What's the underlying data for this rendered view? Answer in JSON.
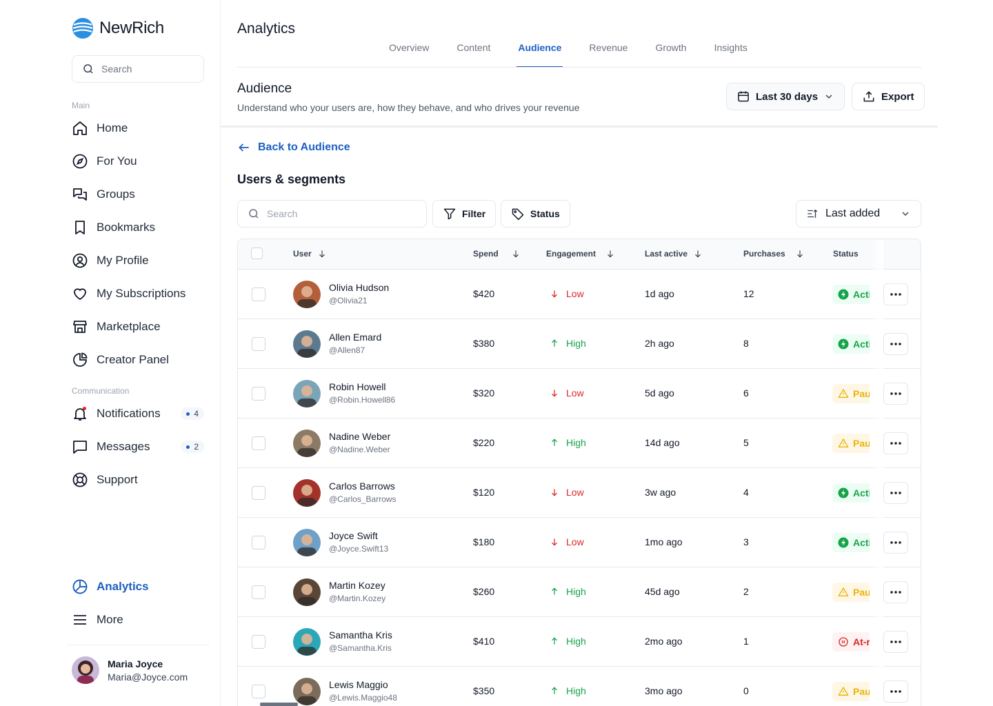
{
  "brand": {
    "name": "NewRich"
  },
  "sidebar": {
    "search_placeholder": "Search",
    "section_main": "Main",
    "main_items": [
      {
        "label": "Home",
        "icon": "home-icon"
      },
      {
        "label": "For You",
        "icon": "compass-icon"
      },
      {
        "label": "Groups",
        "icon": "chat-bubbles-icon"
      },
      {
        "label": "Bookmarks",
        "icon": "bookmark-icon"
      },
      {
        "label": "My Profile",
        "icon": "user-circle-icon"
      },
      {
        "label": "My Subscriptions",
        "icon": "heart-icon"
      },
      {
        "label": "Marketplace",
        "icon": "store-icon"
      },
      {
        "label": "Creator Panel",
        "icon": "pie-chart-icon"
      }
    ],
    "section_comm": "Communication",
    "comm_items": [
      {
        "label": "Notifications",
        "icon": "bell-icon",
        "badge": "4"
      },
      {
        "label": "Messages",
        "icon": "message-icon",
        "badge": "2"
      },
      {
        "label": "Support",
        "icon": "lifebuoy-icon"
      }
    ],
    "bottom_items": [
      {
        "label": "Analytics",
        "icon": "analytics-icon",
        "active": true
      },
      {
        "label": "More",
        "icon": "menu-icon"
      }
    ],
    "user": {
      "name": "Maria Joyce",
      "email": "Maria@Joyce.com"
    }
  },
  "header": {
    "title": "Analytics",
    "tabs": [
      {
        "label": "Overview"
      },
      {
        "label": "Content"
      },
      {
        "label": "Audience",
        "active": true
      },
      {
        "label": "Revenue"
      },
      {
        "label": "Growth"
      },
      {
        "label": "Insights"
      }
    ]
  },
  "section": {
    "title": "Audience",
    "subtitle": "Understand who your users are, how they behave, and who drives your revenue",
    "date_range_label": "Last 30 days",
    "export_label": "Export"
  },
  "back_link": "Back to Audience",
  "list": {
    "title": "Users & segments",
    "search_placeholder": "Search",
    "filter_label": "Filter",
    "status_label": "Status",
    "sort_label": "Last added"
  },
  "table": {
    "columns": {
      "user": "User",
      "spend": "Spend",
      "engagement": "Engagement",
      "last_active": "Last active",
      "purchases": "Purchases",
      "status": "Status"
    },
    "rows": [
      {
        "name": "Olivia Hudson",
        "handle": "@Olivia21",
        "spend": "$420",
        "engagement": "Low",
        "last_active": "1d ago",
        "purchases": "12",
        "status": "Active",
        "status_type": "active",
        "avatar_color": "#b45f3b"
      },
      {
        "name": "Allen Emard",
        "handle": "@Allen87",
        "spend": "$380",
        "engagement": "High",
        "last_active": "2h ago",
        "purchases": "8",
        "status": "Active",
        "status_type": "active",
        "avatar_color": "#5b7a8f"
      },
      {
        "name": "Robin Howell",
        "handle": "@Robin.Howell86",
        "spend": "$320",
        "engagement": "Low",
        "last_active": "5d ago",
        "purchases": "6",
        "status": "Paused",
        "status_type": "pause",
        "avatar_color": "#7aa5b8"
      },
      {
        "name": "Nadine Weber",
        "handle": "@Nadine.Weber",
        "spend": "$220",
        "engagement": "High",
        "last_active": "14d ago",
        "purchases": "5",
        "status": "Paused",
        "status_type": "pause",
        "avatar_color": "#8a7a66"
      },
      {
        "name": "Carlos Barrows",
        "handle": "@Carlos_Barrows",
        "spend": "$120",
        "engagement": "Low",
        "last_active": "3w ago",
        "purchases": "4",
        "status": "Active",
        "status_type": "active",
        "avatar_color": "#a3322b"
      },
      {
        "name": "Joyce Swift",
        "handle": "@Joyce.Swift13",
        "spend": "$180",
        "engagement": "Low",
        "last_active": "1mo ago",
        "purchases": "3",
        "status": "Active",
        "status_type": "active",
        "avatar_color": "#6fa0c7"
      },
      {
        "name": "Martin Kozey",
        "handle": "@Martin.Kozey",
        "spend": "$260",
        "engagement": "High",
        "last_active": "45d ago",
        "purchases": "2",
        "status": "Paused",
        "status_type": "pause",
        "avatar_color": "#5a4636"
      },
      {
        "name": "Samantha Kris",
        "handle": "@Samantha.Kris",
        "spend": "$410",
        "engagement": "High",
        "last_active": "2mo ago",
        "purchases": "1",
        "status": "At-risk",
        "status_type": "risk",
        "avatar_color": "#2aa8b8"
      },
      {
        "name": "Lewis Maggio",
        "handle": "@Lewis.Maggio48",
        "spend": "$350",
        "engagement": "High",
        "last_active": "3mo ago",
        "purchases": "0",
        "status": "Paused",
        "status_type": "pause",
        "avatar_color": "#7b6b5a"
      }
    ]
  },
  "colors": {
    "accent": "#1d5fc1",
    "low": "#dc2626",
    "high": "#16a34a",
    "pause": "#eab308"
  }
}
